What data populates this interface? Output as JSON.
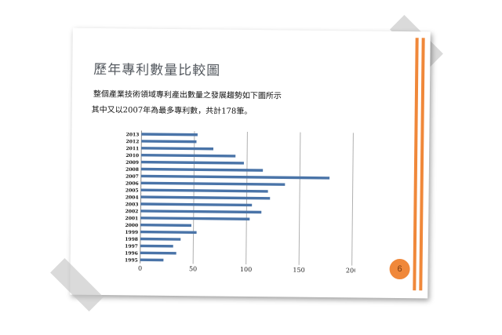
{
  "slide": {
    "title": "歷年專利數量比較圖",
    "line1": "整個產業技術領域專利產出數量之發展趨勢如下圖所示",
    "line2": "其中又以2007年為最多專利數，共計178筆。",
    "page_number": "6"
  },
  "colors": {
    "accent": "#f0883a",
    "bar": "#4a74a8"
  },
  "chart_data": {
    "type": "bar",
    "orientation": "horizontal",
    "title": "",
    "xlabel": "",
    "ylabel": "",
    "categories": [
      "2013",
      "2012",
      "2011",
      "2010",
      "2009",
      "2008",
      "2007",
      "2006",
      "2005",
      "2004",
      "2003",
      "2002",
      "2001",
      "2000",
      "1999",
      "1998",
      "1997",
      "1996",
      "1995"
    ],
    "values": [
      53,
      52,
      68,
      89,
      97,
      115,
      178,
      136,
      120,
      122,
      105,
      114,
      103,
      48,
      53,
      38,
      31,
      34,
      22
    ],
    "x_ticks": [
      "0",
      "50",
      "100",
      "150",
      "200"
    ],
    "xlim": [
      0,
      200
    ],
    "grid": "vertical"
  }
}
